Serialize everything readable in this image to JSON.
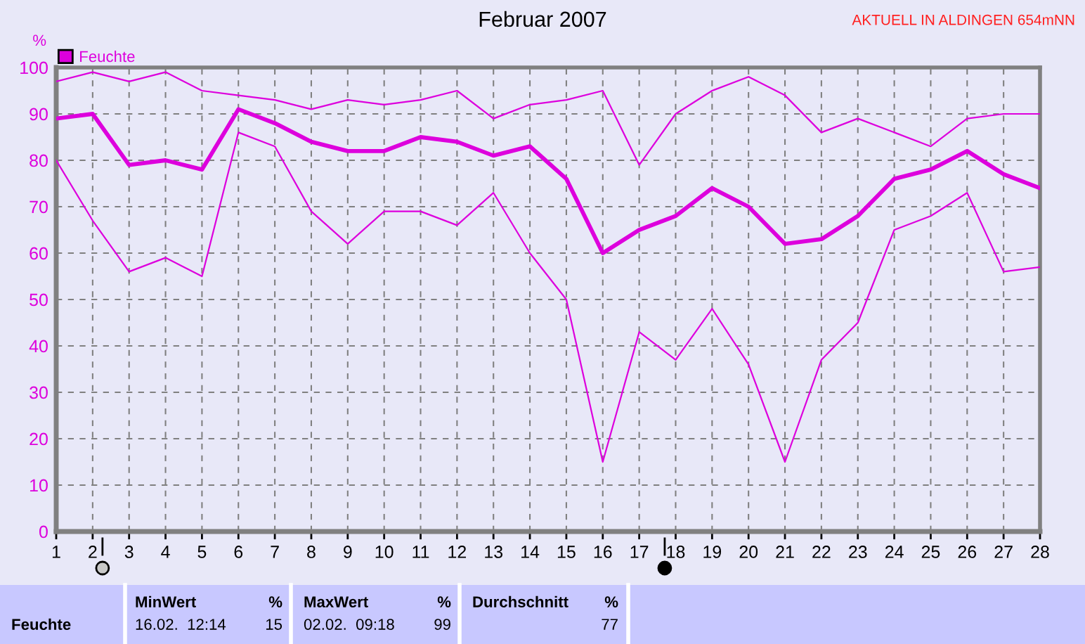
{
  "chart_data": {
    "type": "line",
    "title": "Februar 2007",
    "ylabel": "%",
    "x": [
      1,
      2,
      3,
      4,
      5,
      6,
      7,
      8,
      9,
      10,
      11,
      12,
      13,
      14,
      15,
      16,
      17,
      18,
      19,
      20,
      21,
      22,
      23,
      24,
      25,
      26,
      27,
      28
    ],
    "xlim": [
      1,
      28
    ],
    "xticks": [
      1,
      2,
      3,
      4,
      5,
      6,
      7,
      8,
      9,
      10,
      11,
      12,
      13,
      14,
      15,
      16,
      17,
      18,
      19,
      20,
      21,
      22,
      23,
      24,
      25,
      26,
      27,
      28
    ],
    "ylim": [
      0,
      100
    ],
    "yticks": [
      0,
      10,
      20,
      30,
      40,
      50,
      60,
      70,
      80,
      90,
      100
    ],
    "grid": true,
    "legend": "top left",
    "series": [
      {
        "color": "#dd00dd",
        "values": [
          97,
          99,
          97,
          99,
          95,
          94,
          93,
          91,
          93,
          92,
          93,
          95,
          89,
          92,
          93,
          95,
          79,
          90,
          95,
          98,
          94,
          86,
          89,
          86,
          83,
          89,
          90,
          90
        ]
      },
      {
        "name": "Feuchte",
        "color": "#dd00dd",
        "values": [
          89,
          90,
          79,
          80,
          78,
          91,
          88,
          84,
          82,
          82,
          85,
          84,
          81,
          83,
          76,
          60,
          65,
          68,
          74,
          70,
          62,
          63,
          68,
          76,
          78,
          82,
          77,
          74
        ]
      },
      {
        "color": "#dd00dd",
        "values": [
          80,
          67,
          56,
          59,
          55,
          86,
          83,
          69,
          62,
          69,
          69,
          66,
          73,
          60,
          50,
          15,
          43,
          37,
          48,
          36,
          15,
          37,
          45,
          65,
          68,
          73,
          56,
          57
        ]
      }
    ],
    "annotations": [
      "AKTUELL IN ALDINGEN 654mNN",
      "Feuchte",
      "MinWert",
      "%",
      "16.02.  12:14",
      "15",
      "MaxWert",
      "%",
      "02.02.  09:18",
      "99",
      "Durchschnitt",
      "%",
      "77"
    ]
  }
}
